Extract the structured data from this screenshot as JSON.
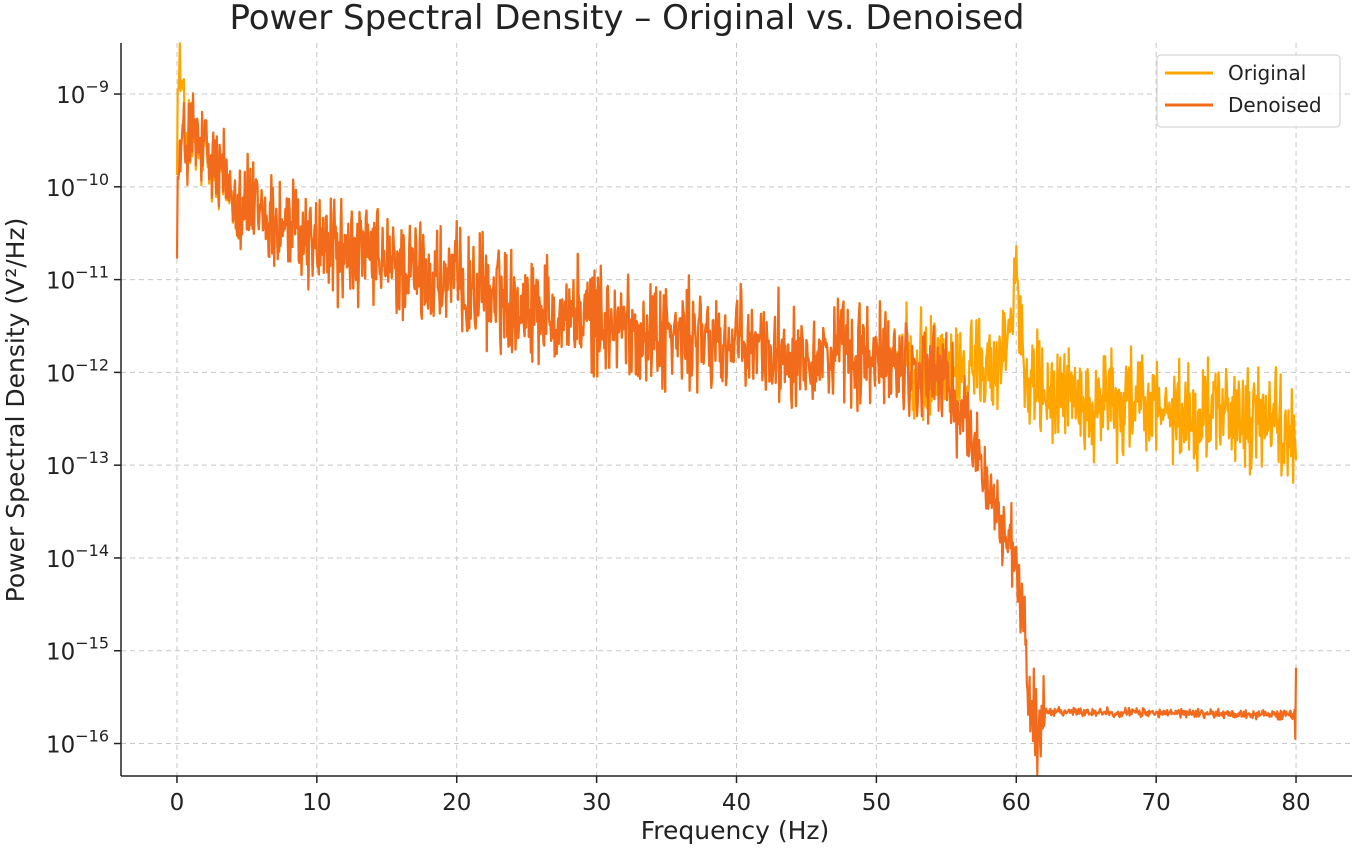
{
  "chart_data": {
    "type": "line",
    "title": "Power Spectral Density – Original vs. Denoised",
    "xlabel": "Frequency (Hz)",
    "ylabel": "Power Spectral Density (V²/Hz)",
    "xlim": [
      -4,
      84
    ],
    "ylim_log10": [
      -16.35,
      -8.45
    ],
    "yscale": "log",
    "grid": true,
    "legend_position": "top-right",
    "x_ticks": [
      0,
      10,
      20,
      30,
      40,
      50,
      60,
      70,
      80
    ],
    "y_ticks": [
      {
        "exp": -9,
        "base": "10",
        "sup": "−9"
      },
      {
        "exp": -10,
        "base": "10",
        "sup": "−10"
      },
      {
        "exp": -11,
        "base": "10",
        "sup": "−11"
      },
      {
        "exp": -12,
        "base": "10",
        "sup": "−12"
      },
      {
        "exp": -13,
        "base": "10",
        "sup": "−13"
      },
      {
        "exp": -14,
        "base": "10",
        "sup": "−14"
      },
      {
        "exp": -15,
        "base": "10",
        "sup": "−15"
      },
      {
        "exp": -16,
        "base": "10",
        "sup": "−16"
      }
    ],
    "series": [
      {
        "name": "Original",
        "color": "#FFA500",
        "trend_log10": {
          "x": [
            0,
            0.2,
            0.5,
            1,
            2,
            5,
            10,
            15,
            20,
            25,
            30,
            35,
            40,
            45,
            50,
            55,
            58,
            59.5,
            60,
            60.5,
            62,
            65,
            70,
            75,
            78,
            80
          ],
          "y": [
            -9.2,
            -8.72,
            -9.3,
            -9.5,
            -9.7,
            -10.2,
            -10.6,
            -10.85,
            -11.05,
            -11.25,
            -11.45,
            -11.6,
            -11.72,
            -11.78,
            -11.85,
            -11.95,
            -12.0,
            -11.9,
            -10.8,
            -11.9,
            -12.15,
            -12.3,
            -12.4,
            -12.45,
            -12.5,
            -12.7
          ]
        },
        "noise_amplitude_log10": 0.35,
        "points": 1600
      },
      {
        "name": "Denoised",
        "color": "#F26A1B",
        "trend_log10": {
          "x": [
            0,
            0.3,
            1,
            2,
            5,
            10,
            15,
            20,
            25,
            30,
            35,
            40,
            45,
            50,
            53,
            55,
            56,
            57,
            58,
            59,
            60,
            60.5,
            61,
            61.5,
            62,
            63,
            65,
            70,
            75,
            80,
            80.05
          ],
          "y": [
            -10.1,
            -9.6,
            -9.45,
            -9.65,
            -10.2,
            -10.6,
            -10.85,
            -11.05,
            -11.25,
            -11.45,
            -11.6,
            -11.72,
            -11.78,
            -11.85,
            -11.95,
            -12.1,
            -12.4,
            -12.8,
            -13.2,
            -13.7,
            -14.1,
            -14.8,
            -15.5,
            -15.9,
            -15.65,
            -15.65,
            -15.66,
            -15.67,
            -15.68,
            -15.69,
            -16.0
          ]
        },
        "noise_amplitude_log10": 0.35,
        "points": 1600
      }
    ]
  }
}
